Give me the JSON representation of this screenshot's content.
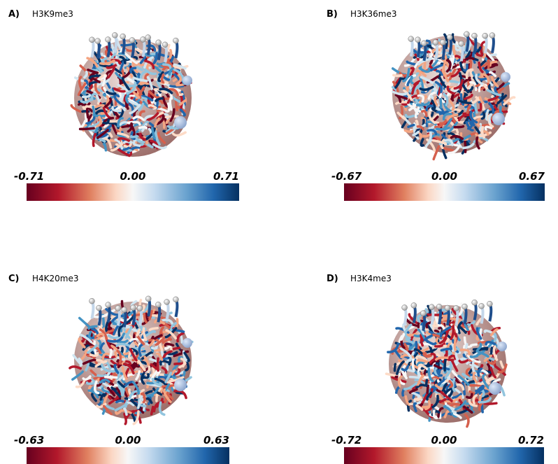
{
  "panels": [
    {
      "label": "A)",
      "title": "H3K9me3",
      "colorbar": {
        "min": "-0.71",
        "mid": "0.00",
        "max": "0.71"
      }
    },
    {
      "label": "B)",
      "title": "H3K36me3",
      "colorbar": {
        "min": "-0.67",
        "mid": "0.00",
        "max": "0.67"
      }
    },
    {
      "label": "C)",
      "title": "H4K20me3",
      "colorbar": {
        "min": "-0.63",
        "mid": "0.00",
        "max": "0.63"
      }
    },
    {
      "label": "D)",
      "title": "H3K4me3",
      "colorbar": {
        "min": "-0.72",
        "mid": "0.00",
        "max": "0.72"
      }
    }
  ]
}
